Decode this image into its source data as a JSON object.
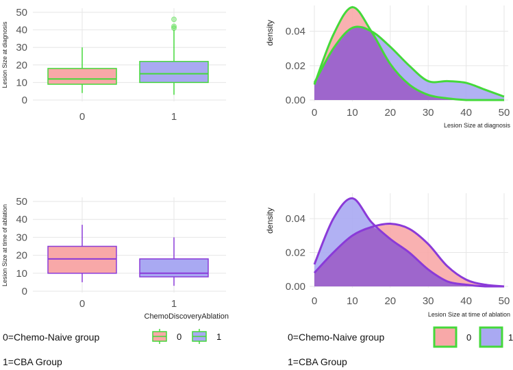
{
  "colors": {
    "grid": "#e6e6e6",
    "group0_fill": "#f8a8a8",
    "group1_fill": "#a9a9f2",
    "overlap_fill": "#9e66cc",
    "green_line": "#44d93a",
    "purple_line": "#8a3ad8"
  },
  "chart_data": [
    {
      "id": "box-diagnosis",
      "type": "box",
      "ylabel": "Lesion Size at diagnosis",
      "xlabel": "",
      "categories": [
        "0",
        "1"
      ],
      "ylim": [
        0,
        50
      ],
      "yticks": [
        "0",
        "10",
        "20",
        "30",
        "40",
        "50"
      ],
      "line_color": "green",
      "boxes": [
        {
          "group": "0",
          "q1": 9,
          "median": 12,
          "q3": 18,
          "whisker_low": 4,
          "whisker_high": 30,
          "outliers": []
        },
        {
          "group": "1",
          "q1": 10,
          "median": 15,
          "q3": 22,
          "whisker_low": 3,
          "whisker_high": 40,
          "outliers": [
            41,
            42,
            46
          ]
        }
      ]
    },
    {
      "id": "density-diagnosis",
      "type": "area",
      "xlabel": "Lesion Size at diagnosis",
      "ylabel": "density",
      "xlim": [
        0,
        50
      ],
      "ylim": [
        0,
        0.055
      ],
      "xticks": [
        "0",
        "10",
        "20",
        "30",
        "40",
        "50"
      ],
      "yticks": [
        "0.00",
        "0.02",
        "0.04"
      ],
      "line_color": "green",
      "x": [
        0,
        5,
        10,
        15,
        20,
        25,
        30,
        35,
        40,
        45,
        50
      ],
      "series": [
        {
          "name": "0",
          "values": [
            0.009,
            0.038,
            0.054,
            0.04,
            0.021,
            0.009,
            0.003,
            0.001,
            0.0,
            0.0,
            0.0
          ]
        },
        {
          "name": "1",
          "values": [
            0.01,
            0.03,
            0.042,
            0.04,
            0.031,
            0.02,
            0.011,
            0.011,
            0.01,
            0.006,
            0.002
          ]
        }
      ]
    },
    {
      "id": "box-ablation",
      "type": "box",
      "ylabel": "Lesion Size at time of ablation",
      "xlabel": "ChemoDiscoveryAblation",
      "categories": [
        "0",
        "1"
      ],
      "ylim": [
        0,
        50
      ],
      "yticks": [
        "0",
        "10",
        "20",
        "30",
        "40",
        "50"
      ],
      "line_color": "purple",
      "boxes": [
        {
          "group": "0",
          "q1": 10,
          "median": 18,
          "q3": 25,
          "whisker_low": 5,
          "whisker_high": 37,
          "outliers": []
        },
        {
          "group": "1",
          "q1": 8,
          "median": 10,
          "q3": 18,
          "whisker_low": 3,
          "whisker_high": 30,
          "outliers": []
        }
      ]
    },
    {
      "id": "density-ablation",
      "type": "area",
      "xlabel": "Lesion Size at time of ablation",
      "ylabel": "density",
      "xlim": [
        0,
        50
      ],
      "ylim": [
        0,
        0.055
      ],
      "xticks": [
        "0",
        "10",
        "20",
        "30",
        "40",
        "50"
      ],
      "yticks": [
        "0.00",
        "0.02",
        "0.04"
      ],
      "line_color": "purple",
      "x": [
        0,
        5,
        10,
        15,
        20,
        25,
        30,
        35,
        40,
        45,
        50
      ],
      "series": [
        {
          "name": "0",
          "values": [
            0.008,
            0.02,
            0.03,
            0.035,
            0.037,
            0.034,
            0.025,
            0.012,
            0.004,
            0.001,
            0.0
          ]
        },
        {
          "name": "1",
          "values": [
            0.013,
            0.04,
            0.052,
            0.038,
            0.028,
            0.02,
            0.01,
            0.003,
            0.001,
            0.0,
            0.0
          ]
        }
      ]
    }
  ],
  "notes": {
    "left_line1": "0=Chemo-Naive group",
    "left_line2": "1=CBA Group",
    "right_line1": "0=Chemo-Naive group",
    "right_line2": "1=CBA Group"
  },
  "legends": {
    "left": {
      "labels": [
        "0",
        "1"
      ]
    },
    "right": {
      "labels": [
        "0",
        "1"
      ]
    }
  }
}
